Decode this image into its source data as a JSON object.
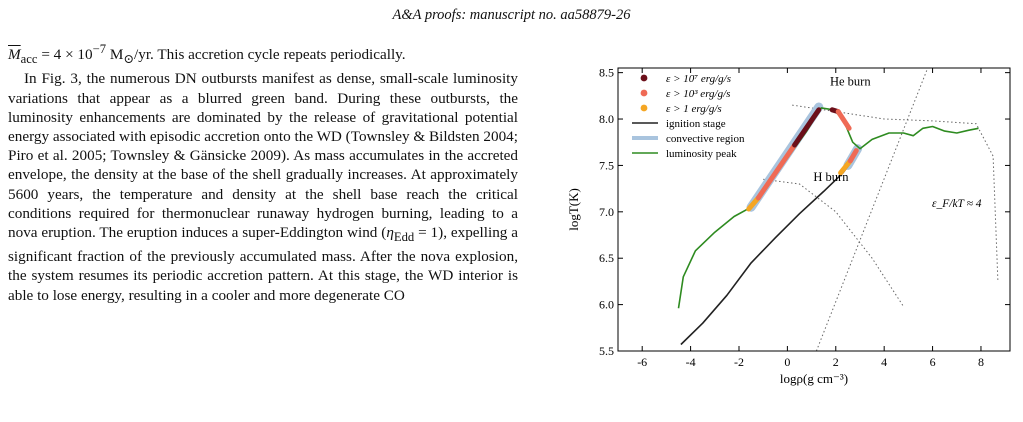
{
  "header": {
    "text": "A&A proofs: manuscript no. aa58879-26"
  },
  "text": {
    "p1_a": "M",
    "p1_sub": "acc",
    "p1_b": " = 4 × 10",
    "p1_sup": "−7",
    "p1_c": " M",
    "p1_sun_sub": "⊙",
    "p1_d": "/yr. This accretion cycle repeats periodically.",
    "p2_a": "In Fig. 3, the numerous DN outbursts manifest as dense, small-scale luminosity variations that appear as a blurred green band. During these outbursts, the luminosity enhancements are dominated by the release of gravitational potential energy associated with episodic accretion onto the WD (Townsley & Bildsten 2004; Piro et al. 2005; Townsley & Gänsicke 2009). As mass accumulates in the accreted envelope, the density at the base of the shell gradually increases. At approximately 5600 years, the temperature and density at the shell base reach the critical conditions required for thermonuclear runaway hydrogen burning, leading to a nova eruption. The eruption induces a super-Eddington wind (",
    "p2_eta": "η",
    "p2_eta_sub": "Edd",
    "p2_b": " = 1), expelling a significant fraction of the previously accumulated mass. After the nova explosion, the system resumes its periodic accretion pattern. At this stage, the WD interior is able to lose energy, resulting in a cooler and more degenerate CO"
  },
  "chart_data": {
    "type": "line",
    "xlabel": "logρ(g cm⁻³)",
    "ylabel": "logT(K)",
    "xlim": [
      -7,
      9.2
    ],
    "ylim": [
      5.5,
      8.55
    ],
    "xticks": [
      -6,
      -4,
      -2,
      0,
      2,
      4,
      6,
      8
    ],
    "yticks": [
      5.5,
      6.0,
      6.5,
      7.0,
      7.5,
      8.0,
      8.5
    ],
    "xtick_labels": [
      "-6",
      "-4",
      "-2",
      "0",
      "2",
      "4",
      "6",
      "8"
    ],
    "ytick_labels": [
      "5.5",
      "6.0",
      "6.5",
      "7.0",
      "7.5",
      "8.0",
      "8.5"
    ],
    "legend_placement": "top-left",
    "legend": [
      {
        "label": "ε > 10⁷ erg/g/s",
        "color": "#6b0f1a",
        "kind": "dot"
      },
      {
        "label": "ε > 10³ erg/g/s",
        "color": "#ef6a55",
        "kind": "dot"
      },
      {
        "label": "ε > 1 erg/g/s",
        "color": "#f5a623",
        "kind": "dot"
      },
      {
        "label": "ignition stage",
        "color": "#222222",
        "kind": "line"
      },
      {
        "label": "convective region",
        "color": "#a9c4de",
        "kind": "band"
      },
      {
        "label": "luminosity peak",
        "color": "#2e8b20",
        "kind": "line"
      }
    ],
    "annotations": [
      {
        "text": "He burn",
        "x": 2.6,
        "y": 8.36
      },
      {
        "text": "H burn",
        "x": 1.8,
        "y": 7.33
      },
      {
        "text": "ε_F/kT ≈ 4",
        "x": 7.0,
        "y": 7.05
      }
    ],
    "series": [
      {
        "id": "ignition-stage",
        "color": "#222222",
        "points": [
          [
            -4.4,
            5.57
          ],
          [
            -3.5,
            5.8
          ],
          [
            -2.5,
            6.1
          ],
          [
            -1.5,
            6.45
          ],
          [
            -0.5,
            6.72
          ],
          [
            0.5,
            6.98
          ],
          [
            1.5,
            7.22
          ],
          [
            2.3,
            7.42
          ],
          [
            2.7,
            7.56
          ]
        ]
      },
      {
        "id": "luminosity-peak",
        "color": "#2e8b20",
        "points": [
          [
            -4.5,
            5.96
          ],
          [
            -4.3,
            6.3
          ],
          [
            -3.8,
            6.58
          ],
          [
            -3.0,
            6.78
          ],
          [
            -2.2,
            6.95
          ],
          [
            -1.5,
            7.05
          ],
          [
            -0.8,
            7.3
          ],
          [
            0,
            7.58
          ],
          [
            0.8,
            7.87
          ],
          [
            1.4,
            8.12
          ],
          [
            1.9,
            8.1
          ],
          [
            2.3,
            8.0
          ],
          [
            2.7,
            7.75
          ],
          [
            3.0,
            7.68
          ],
          [
            3.5,
            7.78
          ],
          [
            4.2,
            7.85
          ],
          [
            4.8,
            7.85
          ],
          [
            5.2,
            7.82
          ],
          [
            5.6,
            7.9
          ],
          [
            6.0,
            7.92
          ],
          [
            6.5,
            7.87
          ],
          [
            7.0,
            7.85
          ],
          [
            7.5,
            7.88
          ],
          [
            7.9,
            7.9
          ]
        ]
      }
    ],
    "convective_region": [
      [
        -1.5,
        7.05
      ],
      [
        1.3,
        8.13
      ]
    ],
    "convective_region_2": [
      [
        2.5,
        7.5
      ],
      [
        2.9,
        7.68
      ]
    ],
    "burning_segments": [
      {
        "color": "#f5a623",
        "points": [
          [
            -1.6,
            7.03
          ],
          [
            -1.2,
            7.15
          ]
        ]
      },
      {
        "color": "#ef6a55",
        "points": [
          [
            -1.2,
            7.15
          ],
          [
            0.3,
            7.72
          ]
        ]
      },
      {
        "color": "#6b0f1a",
        "points": [
          [
            0.3,
            7.72
          ],
          [
            1.3,
            8.1
          ]
        ]
      },
      {
        "color": "#6b0f1a",
        "points": [
          [
            1.85,
            8.1
          ],
          [
            2.1,
            8.08
          ]
        ]
      },
      {
        "color": "#ef6a55",
        "points": [
          [
            2.1,
            8.08
          ],
          [
            2.55,
            7.9
          ]
        ]
      },
      {
        "color": "#f5a623",
        "points": [
          [
            2.2,
            7.42
          ],
          [
            2.6,
            7.55
          ]
        ]
      },
      {
        "color": "#ef6a55",
        "points": [
          [
            2.6,
            7.55
          ],
          [
            2.85,
            7.66
          ]
        ]
      }
    ],
    "dotted_lines": [
      {
        "id": "he-burn-line",
        "points": [
          [
            0.2,
            8.15
          ],
          [
            2.0,
            8.08
          ],
          [
            4.0,
            8.0
          ],
          [
            6.0,
            7.98
          ],
          [
            7.8,
            7.95
          ],
          [
            8.5,
            7.6
          ],
          [
            8.7,
            6.25
          ]
        ]
      },
      {
        "id": "h-burn-line",
        "points": [
          [
            -1.0,
            7.35
          ],
          [
            0.5,
            7.3
          ],
          [
            2.0,
            7.0
          ],
          [
            3.5,
            6.5
          ],
          [
            4.8,
            5.98
          ]
        ]
      },
      {
        "id": "degeneracy-line",
        "points": [
          [
            1.2,
            5.5
          ],
          [
            5.8,
            8.55
          ]
        ]
      }
    ]
  }
}
